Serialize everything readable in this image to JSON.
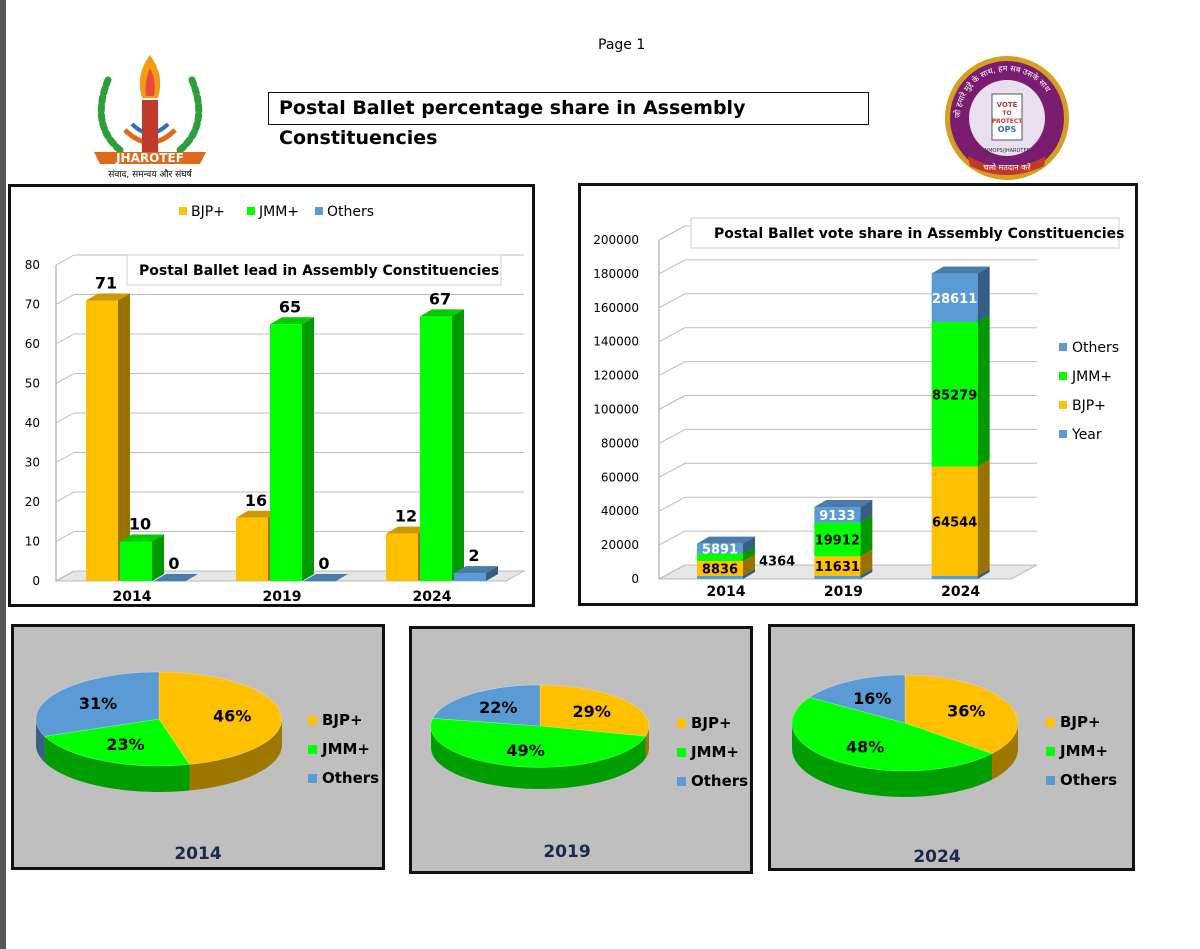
{
  "page": {
    "label": "Page 1",
    "title": "Postal  Ballet percentage share in Assembly Constituencies"
  },
  "logos": {
    "left": {
      "name": "JHAROTEF",
      "tagline": "संवाद, समन्वय और संघर्ष"
    },
    "right": {
      "lines": [
        "VOTE",
        "TO",
        "PROTECT",
        "OPS"
      ],
      "ring_text": "जो हमारे मुद्दे के साथ, हम सब उसके साथ",
      "bottom_text": "चलो मतदान करें",
      "org": "NMOPS/JHAROTEF"
    }
  },
  "colors": {
    "bjp": "#FFC000",
    "jmm": "#00FF00",
    "others": "#5B9BD5",
    "year": "#5B9BD5",
    "pie_bg": "#BFBFBF"
  },
  "chart_data": [
    {
      "type": "bar",
      "title": "Postal  Ballet lead in Assembly Constituencies",
      "categories": [
        "2014",
        "2019",
        "2024"
      ],
      "series": [
        {
          "name": "BJP+",
          "values": [
            71,
            16,
            12
          ]
        },
        {
          "name": "JMM+",
          "values": [
            10,
            65,
            67
          ]
        },
        {
          "name": "Others",
          "values": [
            0,
            0,
            2
          ]
        }
      ],
      "ylim": [
        0,
        80
      ],
      "yticks": [
        "0",
        "10",
        "20",
        "30",
        "40",
        "50",
        "60",
        "70",
        "80"
      ],
      "legend": [
        "BJP+",
        "JMM+",
        "Others"
      ],
      "legend_position": "top"
    },
    {
      "type": "bar",
      "stacked": true,
      "title": "Postal  Ballet vote share in  Assembly Constituencies",
      "categories": [
        "2014",
        "2019",
        "2024"
      ],
      "series": [
        {
          "name": "Year",
          "values": [
            2014,
            2019,
            2024
          ]
        },
        {
          "name": "BJP+",
          "values": [
            8836,
            11631,
            64544
          ]
        },
        {
          "name": "JMM+",
          "values": [
            4364,
            19912,
            85279
          ]
        },
        {
          "name": "Others",
          "values": [
            5891,
            9133,
            28611
          ]
        }
      ],
      "ylim": [
        0,
        200000
      ],
      "yticks": [
        "0",
        "20000",
        "40000",
        "60000",
        "80000",
        "100000",
        "120000",
        "140000",
        "160000",
        "180000",
        "200000"
      ],
      "legend": [
        "Others",
        "JMM+",
        "BJP+",
        "Year"
      ],
      "legend_position": "right"
    },
    {
      "type": "pie",
      "title": "2014",
      "labels": [
        "BJP+",
        "JMM+",
        "Others"
      ],
      "values": [
        46,
        23,
        31
      ],
      "value_labels": [
        "46%",
        "23%",
        "31%"
      ]
    },
    {
      "type": "pie",
      "title": "2019",
      "labels": [
        "BJP+",
        "JMM+",
        "Others"
      ],
      "values": [
        29,
        49,
        22
      ],
      "value_labels": [
        "29%",
        "49%",
        "22%"
      ]
    },
    {
      "type": "pie",
      "title": "2024",
      "labels": [
        "BJP+",
        "JMM+",
        "Others"
      ],
      "values": [
        36,
        48,
        16
      ],
      "value_labels": [
        "36%",
        "48%",
        "16%"
      ]
    }
  ]
}
